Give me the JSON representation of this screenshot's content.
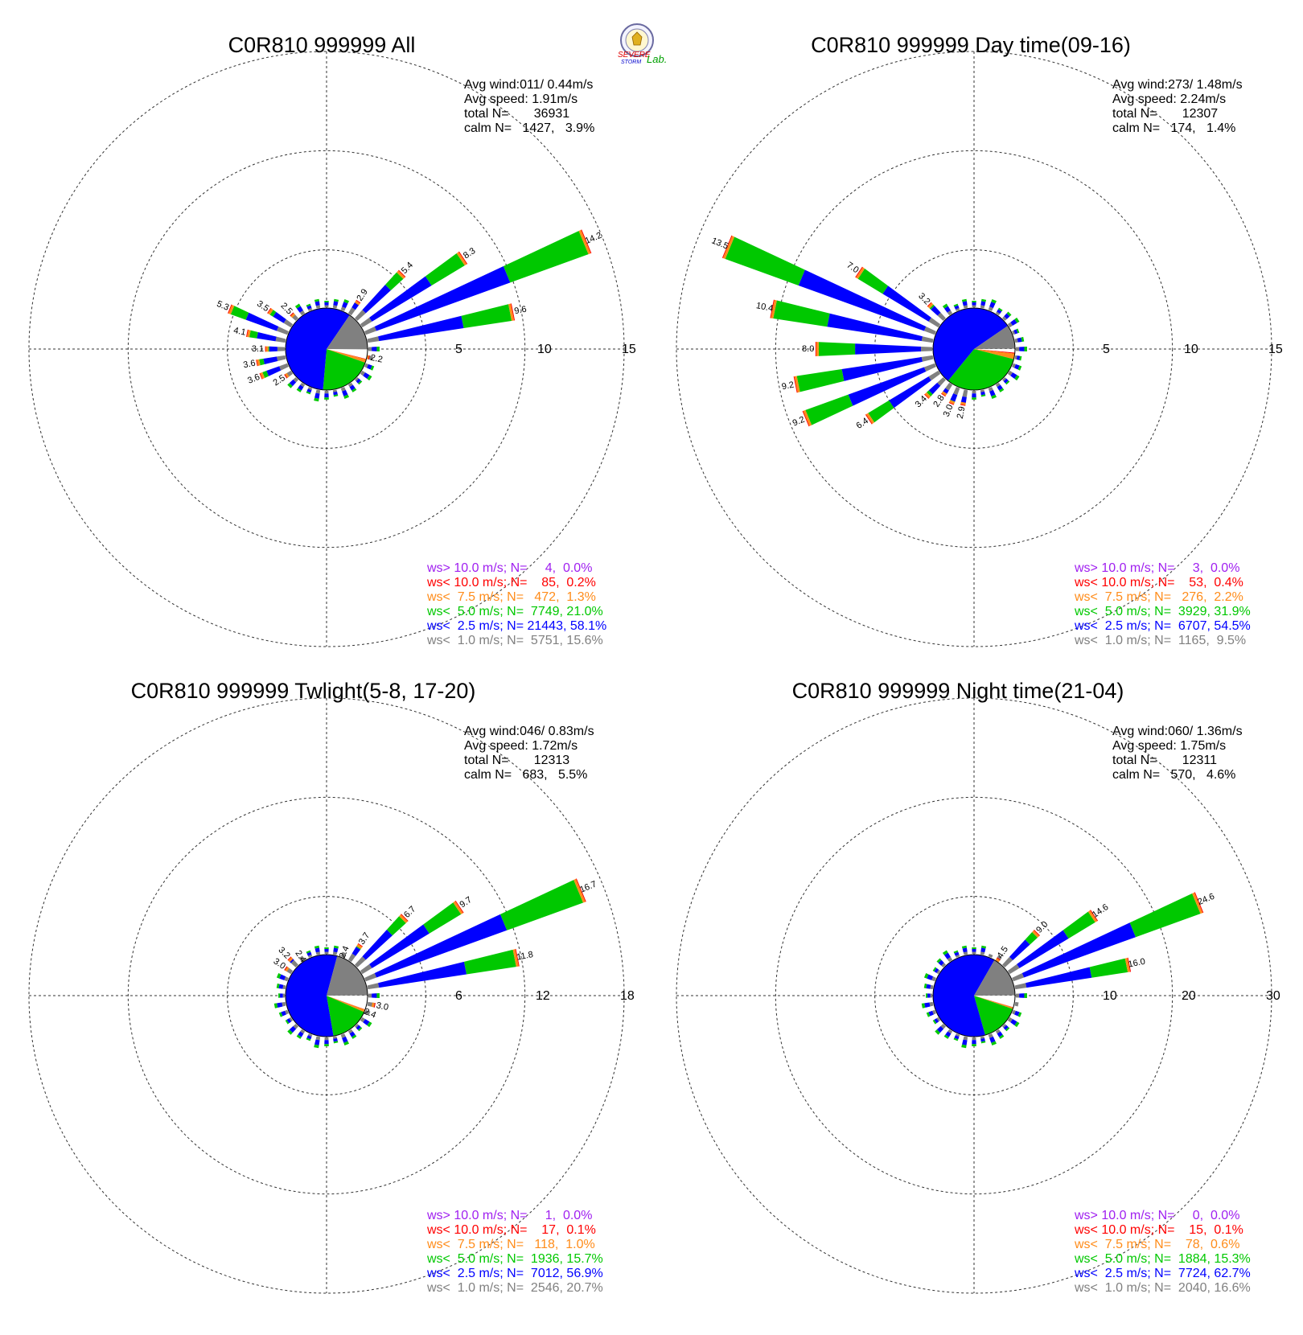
{
  "logo": {
    "text_top": "SEVERE",
    "text_bottom": "STORM",
    "text_right": "Lab."
  },
  "colors": {
    "purple": "#a020f0",
    "red": "#ff0000",
    "orange": "#ff8c1a",
    "green": "#00c800",
    "blue": "#0000ff",
    "gray": "#808080",
    "white": "#ffffff"
  },
  "chart_data": [
    {
      "type": "wind_rose",
      "title": "C0R810 999999 All",
      "info": [
        "Avg wind:011/ 0.44m/s",
        "Avg speed: 1.91m/s",
        "total N=       36931",
        "calm N=   1427,   3.9%"
      ],
      "ring_labels": [
        "5",
        "10",
        "15"
      ],
      "rmax": 15,
      "pie": {
        "white": 3.9,
        "red": 0.2,
        "orange": 1.3,
        "green": 21.0,
        "blue": 58.1,
        "gray": 15.6
      },
      "labeled_bars": [
        {
          "dir": 67.5,
          "total": 14.2
        },
        {
          "dir": 78.75,
          "total": 9.6
        },
        {
          "dir": 56.25,
          "total": 8.3
        },
        {
          "dir": 45,
          "total": 5.4
        },
        {
          "dir": 33.75,
          "total": 2.9
        },
        {
          "dir": 101.25,
          "total": 2.2
        },
        {
          "dir": 292.5,
          "total": 5.3
        },
        {
          "dir": 303.75,
          "total": 3.5
        },
        {
          "dir": 315,
          "total": 2.5
        },
        {
          "dir": 281.25,
          "total": 4.1
        },
        {
          "dir": 270,
          "total": 3.1
        },
        {
          "dir": 258.75,
          "total": 3.6
        },
        {
          "dir": 247.5,
          "total": 3.6
        },
        {
          "dir": 236.25,
          "total": 2.5
        }
      ],
      "legend": [
        {
          "text": "ws> 10.0 m/s; N=     4,  0.0%",
          "color": "purple"
        },
        {
          "text": "ws< 10.0 m/s; N=    85,  0.2%",
          "color": "red"
        },
        {
          "text": "ws<  7.5 m/s; N=   472,  1.3%",
          "color": "orange"
        },
        {
          "text": "ws<  5.0 m/s; N=  7749, 21.0%",
          "color": "green"
        },
        {
          "text": "ws<  2.5 m/s; N= 21443, 58.1%",
          "color": "blue"
        },
        {
          "text": "ws<  1.0 m/s; N=  5751, 15.6%",
          "color": "gray"
        }
      ]
    },
    {
      "type": "wind_rose",
      "title": "C0R810 999999 Day time(09-16)",
      "info": [
        "Avg wind:273/ 1.48m/s",
        "Avg speed: 2.24m/s",
        "total N=       12307",
        "calm N=   174,   1.4%"
      ],
      "ring_labels": [
        "5",
        "10",
        "15"
      ],
      "rmax": 15,
      "pie": {
        "white": 1.4,
        "red": 0.4,
        "orange": 2.2,
        "green": 31.9,
        "blue": 54.5,
        "gray": 9.5
      },
      "labeled_bars": [
        {
          "dir": 292.5,
          "total": 13.5
        },
        {
          "dir": 281.25,
          "total": 10.4
        },
        {
          "dir": 270,
          "total": 8.0
        },
        {
          "dir": 258.75,
          "total": 9.2
        },
        {
          "dir": 247.5,
          "total": 9.2
        },
        {
          "dir": 236.25,
          "total": 6.4
        },
        {
          "dir": 225,
          "total": 3.4
        },
        {
          "dir": 213.75,
          "total": 2.8
        },
        {
          "dir": 202.5,
          "total": 3.0
        },
        {
          "dir": 191.25,
          "total": 2.9
        },
        {
          "dir": 303.75,
          "total": 7.0
        },
        {
          "dir": 315,
          "total": 3.2
        }
      ],
      "legend": [
        {
          "text": "ws> 10.0 m/s; N=     3,  0.0%",
          "color": "purple"
        },
        {
          "text": "ws< 10.0 m/s; N=    53,  0.4%",
          "color": "red"
        },
        {
          "text": "ws<  7.5 m/s; N=   276,  2.2%",
          "color": "orange"
        },
        {
          "text": "ws<  5.0 m/s; N=  3929, 31.9%",
          "color": "green"
        },
        {
          "text": "ws<  2.5 m/s; N=  6707, 54.5%",
          "color": "blue"
        },
        {
          "text": "ws<  1.0 m/s; N=  1165,  9.5%",
          "color": "gray"
        }
      ]
    },
    {
      "type": "wind_rose",
      "title": "C0R810 999999 Twlight(5-8, 17-20)",
      "info": [
        "Avg wind:046/ 0.83m/s",
        "Avg speed: 1.72m/s",
        "total N=       12313",
        "calm N=   683,   5.5%"
      ],
      "ring_labels": [
        "6",
        "12",
        "18"
      ],
      "rmax": 18,
      "pie": {
        "white": 5.5,
        "red": 0.1,
        "orange": 1.0,
        "green": 15.7,
        "blue": 56.9,
        "gray": 20.7
      },
      "labeled_bars": [
        {
          "dir": 67.5,
          "total": 16.7
        },
        {
          "dir": 78.75,
          "total": 11.8
        },
        {
          "dir": 56.25,
          "total": 9.7
        },
        {
          "dir": 45,
          "total": 6.7
        },
        {
          "dir": 33.75,
          "total": 3.7
        },
        {
          "dir": 22.5,
          "total": 2.4
        },
        {
          "dir": 101.25,
          "total": 3.0
        },
        {
          "dir": 112.5,
          "total": 2.4
        },
        {
          "dir": 303.75,
          "total": 3.0
        },
        {
          "dir": 315,
          "total": 3.2
        },
        {
          "dir": 326.25,
          "total": 2.4
        }
      ],
      "legend": [
        {
          "text": "ws> 10.0 m/s; N=     1,  0.0%",
          "color": "purple"
        },
        {
          "text": "ws< 10.0 m/s; N=    17,  0.1%",
          "color": "red"
        },
        {
          "text": "ws<  7.5 m/s; N=   118,  1.0%",
          "color": "orange"
        },
        {
          "text": "ws<  5.0 m/s; N=  1936, 15.7%",
          "color": "green"
        },
        {
          "text": "ws<  2.5 m/s; N=  7012, 56.9%",
          "color": "blue"
        },
        {
          "text": "ws<  1.0 m/s; N=  2546, 20.7%",
          "color": "gray"
        }
      ]
    },
    {
      "type": "wind_rose",
      "title": "C0R810 999999 Night time(21-04)",
      "info": [
        "Avg wind:060/ 1.36m/s",
        "Avg speed: 1.75m/s",
        "total N=       12311",
        "calm N=   570,   4.6%"
      ],
      "ring_labels": [
        "10",
        "20",
        "30"
      ],
      "rmax": 30,
      "pie": {
        "white": 4.6,
        "red": 0.1,
        "orange": 0.6,
        "green": 15.3,
        "blue": 62.7,
        "gray": 16.6
      },
      "labeled_bars": [
        {
          "dir": 67.5,
          "total": 24.6
        },
        {
          "dir": 78.75,
          "total": 16.0
        },
        {
          "dir": 56.25,
          "total": 14.6
        },
        {
          "dir": 45,
          "total": 9.0
        },
        {
          "dir": 33.75,
          "total": 4.5
        },
        {
          "dir": 22.5,
          "total": 2.3
        },
        {
          "dir": 101.25,
          "total": 2.8
        }
      ],
      "legend": [
        {
          "text": "ws> 10.0 m/s; N=     0,  0.0%",
          "color": "purple"
        },
        {
          "text": "ws< 10.0 m/s; N=    15,  0.1%",
          "color": "red"
        },
        {
          "text": "ws<  7.5 m/s; N=    78,  0.6%",
          "color": "orange"
        },
        {
          "text": "ws<  5.0 m/s; N=  1884, 15.3%",
          "color": "green"
        },
        {
          "text": "ws<  2.5 m/s; N=  7724, 62.7%",
          "color": "blue"
        },
        {
          "text": "ws<  1.0 m/s; N=  2040, 16.6%",
          "color": "gray"
        }
      ]
    }
  ]
}
